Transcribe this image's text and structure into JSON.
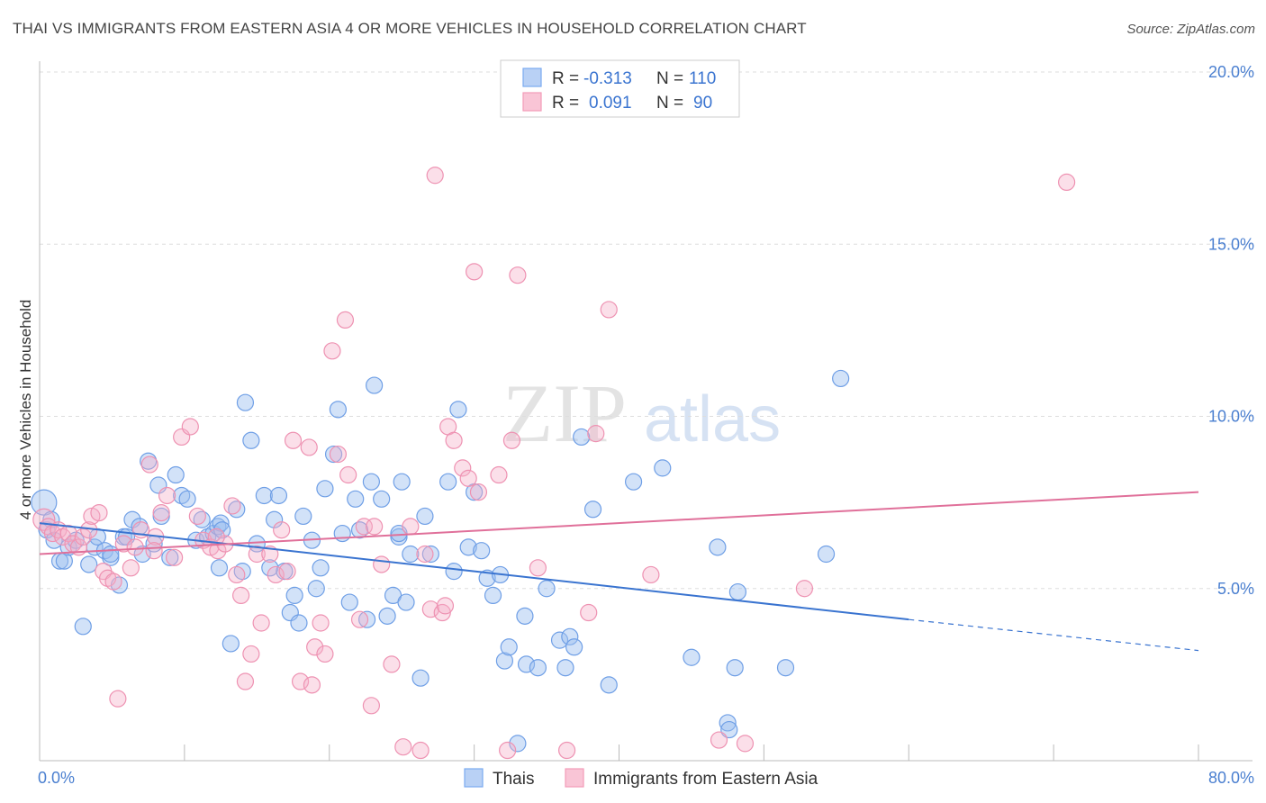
{
  "title": "THAI VS IMMIGRANTS FROM EASTERN ASIA 4 OR MORE VEHICLES IN HOUSEHOLD CORRELATION CHART",
  "source": "Source: ZipAtlas.com",
  "watermark": {
    "zip": "ZIP",
    "atlas": "atlas"
  },
  "colors": {
    "thais": "#7aaaf0",
    "thais_line": "#3a74d0",
    "immigrants": "#f29bb8",
    "immigrants_line": "#e0709a",
    "tick": "#4a7fd0"
  },
  "legend_top": {
    "rows": [
      {
        "r_label": "R =",
        "r_value": "-0.313",
        "n_label": "N =",
        "n_value": "110"
      },
      {
        "r_label": "R =",
        "r_value": "0.091",
        "n_label": "N =",
        "n_value": "90"
      }
    ]
  },
  "legend_bottom": [
    "Thais",
    "Immigrants from Eastern Asia"
  ],
  "chart_data": {
    "type": "scatter",
    "title": "THAI VS IMMIGRANTS FROM EASTERN ASIA 4 OR MORE VEHICLES IN HOUSEHOLD CORRELATION CHART",
    "xlabel": "",
    "ylabel": "4 or more Vehicles in Household",
    "xlim": [
      0,
      80
    ],
    "ylim": [
      0,
      20
    ],
    "x_tick_labels": [
      "0.0%",
      "80.0%"
    ],
    "y_tick_labels": [
      "5.0%",
      "10.0%",
      "15.0%",
      "20.0%"
    ],
    "y_ticks": [
      5,
      10,
      15,
      20
    ],
    "grid": true,
    "series": [
      {
        "name": "Thais",
        "trend": {
          "x": [
            0,
            60
          ],
          "y": [
            6.9,
            4.1
          ],
          "dashed_to": [
            80,
            3.2
          ]
        },
        "points": [
          [
            0.3,
            7.5
          ],
          [
            0.5,
            6.7
          ],
          [
            0.8,
            7.0
          ],
          [
            1.0,
            6.4
          ],
          [
            1.4,
            5.8
          ],
          [
            1.7,
            5.8
          ],
          [
            2.0,
            6.2
          ],
          [
            2.5,
            6.4
          ],
          [
            3.0,
            3.9
          ],
          [
            3.4,
            5.7
          ],
          [
            3.8,
            6.2
          ],
          [
            4.0,
            6.5
          ],
          [
            4.5,
            6.1
          ],
          [
            4.9,
            5.9
          ],
          [
            5.5,
            5.1
          ],
          [
            5.8,
            6.5
          ],
          [
            6.0,
            6.5
          ],
          [
            6.4,
            7.0
          ],
          [
            6.9,
            6.8
          ],
          [
            7.1,
            6.0
          ],
          [
            7.5,
            8.7
          ],
          [
            7.9,
            6.3
          ],
          [
            8.2,
            8.0
          ],
          [
            8.4,
            7.1
          ],
          [
            9.0,
            5.9
          ],
          [
            9.4,
            8.3
          ],
          [
            9.8,
            7.7
          ],
          [
            10.2,
            7.6
          ],
          [
            10.8,
            6.4
          ],
          [
            11.2,
            7.0
          ],
          [
            11.6,
            6.5
          ],
          [
            12.0,
            6.6
          ],
          [
            12.3,
            6.8
          ],
          [
            12.5,
            6.9
          ],
          [
            12.6,
            6.7
          ],
          [
            12.4,
            5.6
          ],
          [
            13.2,
            3.4
          ],
          [
            13.6,
            7.3
          ],
          [
            14.0,
            5.5
          ],
          [
            14.2,
            10.4
          ],
          [
            14.6,
            9.3
          ],
          [
            15.0,
            6.3
          ],
          [
            15.5,
            7.7
          ],
          [
            15.9,
            5.6
          ],
          [
            16.2,
            7.0
          ],
          [
            16.5,
            7.7
          ],
          [
            16.9,
            5.5
          ],
          [
            17.3,
            4.3
          ],
          [
            17.6,
            4.8
          ],
          [
            17.9,
            4.0
          ],
          [
            18.2,
            7.1
          ],
          [
            18.8,
            6.4
          ],
          [
            19.1,
            5.0
          ],
          [
            19.4,
            5.6
          ],
          [
            19.7,
            7.9
          ],
          [
            20.3,
            8.9
          ],
          [
            20.6,
            10.2
          ],
          [
            20.9,
            6.6
          ],
          [
            21.4,
            4.6
          ],
          [
            21.8,
            7.6
          ],
          [
            22.1,
            6.7
          ],
          [
            22.6,
            4.1
          ],
          [
            22.9,
            8.1
          ],
          [
            23.1,
            10.9
          ],
          [
            23.6,
            7.6
          ],
          [
            24.0,
            4.2
          ],
          [
            24.4,
            4.8
          ],
          [
            24.8,
            6.5
          ],
          [
            25.0,
            8.1
          ],
          [
            25.3,
            4.6
          ],
          [
            25.6,
            6.0
          ],
          [
            26.3,
            2.4
          ],
          [
            26.6,
            7.1
          ],
          [
            27.0,
            6.0
          ],
          [
            28.2,
            8.1
          ],
          [
            28.6,
            5.5
          ],
          [
            28.9,
            10.2
          ],
          [
            29.6,
            6.2
          ],
          [
            30.0,
            7.8
          ],
          [
            30.5,
            6.1
          ],
          [
            30.9,
            5.3
          ],
          [
            31.3,
            4.8
          ],
          [
            31.8,
            5.4
          ],
          [
            32.1,
            2.9
          ],
          [
            32.4,
            3.3
          ],
          [
            33.0,
            0.5
          ],
          [
            33.5,
            4.2
          ],
          [
            33.6,
            2.8
          ],
          [
            34.4,
            2.7
          ],
          [
            35.0,
            5.0
          ],
          [
            35.9,
            3.5
          ],
          [
            36.3,
            2.7
          ],
          [
            36.6,
            3.6
          ],
          [
            36.9,
            3.3
          ],
          [
            37.4,
            9.4
          ],
          [
            38.2,
            7.3
          ],
          [
            39.3,
            2.2
          ],
          [
            41.0,
            8.1
          ],
          [
            43.0,
            8.5
          ],
          [
            45.0,
            3.0
          ],
          [
            47.5,
            1.1
          ],
          [
            47.6,
            0.9
          ],
          [
            48.0,
            2.7
          ],
          [
            48.2,
            4.9
          ],
          [
            51.5,
            2.7
          ],
          [
            54.3,
            6.0
          ],
          [
            55.3,
            11.1
          ],
          [
            46.8,
            6.2
          ],
          [
            24.8,
            6.6
          ],
          [
            4.9,
            6.0
          ]
        ]
      },
      {
        "name": "Immigrants from Eastern Asia",
        "trend": {
          "x": [
            0,
            80
          ],
          "y": [
            6.0,
            7.8
          ]
        },
        "points": [
          [
            0.3,
            7.0
          ],
          [
            0.6,
            6.8
          ],
          [
            0.9,
            6.6
          ],
          [
            1.3,
            6.7
          ],
          [
            1.6,
            6.5
          ],
          [
            2.0,
            6.6
          ],
          [
            2.3,
            6.3
          ],
          [
            2.7,
            6.2
          ],
          [
            3.0,
            6.5
          ],
          [
            3.4,
            6.7
          ],
          [
            3.6,
            7.1
          ],
          [
            4.1,
            7.2
          ],
          [
            4.4,
            5.5
          ],
          [
            4.7,
            5.3
          ],
          [
            5.1,
            5.2
          ],
          [
            5.4,
            1.8
          ],
          [
            5.8,
            6.3
          ],
          [
            6.3,
            5.6
          ],
          [
            6.6,
            6.2
          ],
          [
            7.0,
            6.7
          ],
          [
            7.6,
            8.6
          ],
          [
            8.0,
            6.5
          ],
          [
            8.4,
            7.2
          ],
          [
            8.8,
            7.7
          ],
          [
            9.3,
            5.9
          ],
          [
            9.8,
            9.4
          ],
          [
            10.4,
            9.7
          ],
          [
            10.9,
            7.1
          ],
          [
            11.3,
            6.4
          ],
          [
            11.8,
            6.2
          ],
          [
            12.3,
            6.1
          ],
          [
            12.8,
            6.3
          ],
          [
            13.3,
            7.4
          ],
          [
            13.6,
            5.4
          ],
          [
            13.9,
            4.8
          ],
          [
            14.2,
            2.3
          ],
          [
            14.6,
            3.1
          ],
          [
            15.0,
            6.0
          ],
          [
            15.3,
            4.0
          ],
          [
            15.9,
            6.0
          ],
          [
            16.3,
            5.4
          ],
          [
            16.7,
            6.7
          ],
          [
            17.1,
            5.5
          ],
          [
            17.5,
            9.3
          ],
          [
            18.0,
            2.3
          ],
          [
            18.6,
            9.1
          ],
          [
            19.0,
            3.3
          ],
          [
            19.4,
            4.0
          ],
          [
            19.7,
            3.1
          ],
          [
            20.2,
            11.9
          ],
          [
            20.6,
            8.9
          ],
          [
            21.1,
            12.8
          ],
          [
            21.3,
            8.3
          ],
          [
            22.1,
            4.1
          ],
          [
            22.4,
            6.8
          ],
          [
            22.9,
            1.6
          ],
          [
            23.1,
            6.8
          ],
          [
            23.6,
            5.7
          ],
          [
            24.3,
            2.8
          ],
          [
            25.1,
            0.4
          ],
          [
            25.6,
            6.8
          ],
          [
            26.3,
            0.3
          ],
          [
            26.6,
            6.0
          ],
          [
            27.0,
            4.4
          ],
          [
            27.3,
            17.0
          ],
          [
            27.8,
            4.3
          ],
          [
            28.2,
            9.7
          ],
          [
            28.6,
            9.3
          ],
          [
            29.2,
            8.5
          ],
          [
            29.6,
            8.2
          ],
          [
            30.0,
            14.2
          ],
          [
            30.3,
            7.8
          ],
          [
            31.7,
            8.3
          ],
          [
            32.3,
            0.3
          ],
          [
            32.6,
            9.3
          ],
          [
            33.0,
            14.1
          ],
          [
            34.4,
            5.6
          ],
          [
            36.4,
            0.3
          ],
          [
            37.9,
            4.3
          ],
          [
            38.4,
            9.5
          ],
          [
            39.3,
            13.1
          ],
          [
            42.2,
            5.4
          ],
          [
            46.9,
            0.6
          ],
          [
            48.7,
            0.5
          ],
          [
            52.8,
            5.0
          ],
          [
            70.9,
            16.8
          ],
          [
            28.0,
            4.5
          ],
          [
            18.8,
            2.2
          ],
          [
            12.2,
            6.5
          ],
          [
            7.9,
            6.1
          ]
        ]
      }
    ]
  }
}
